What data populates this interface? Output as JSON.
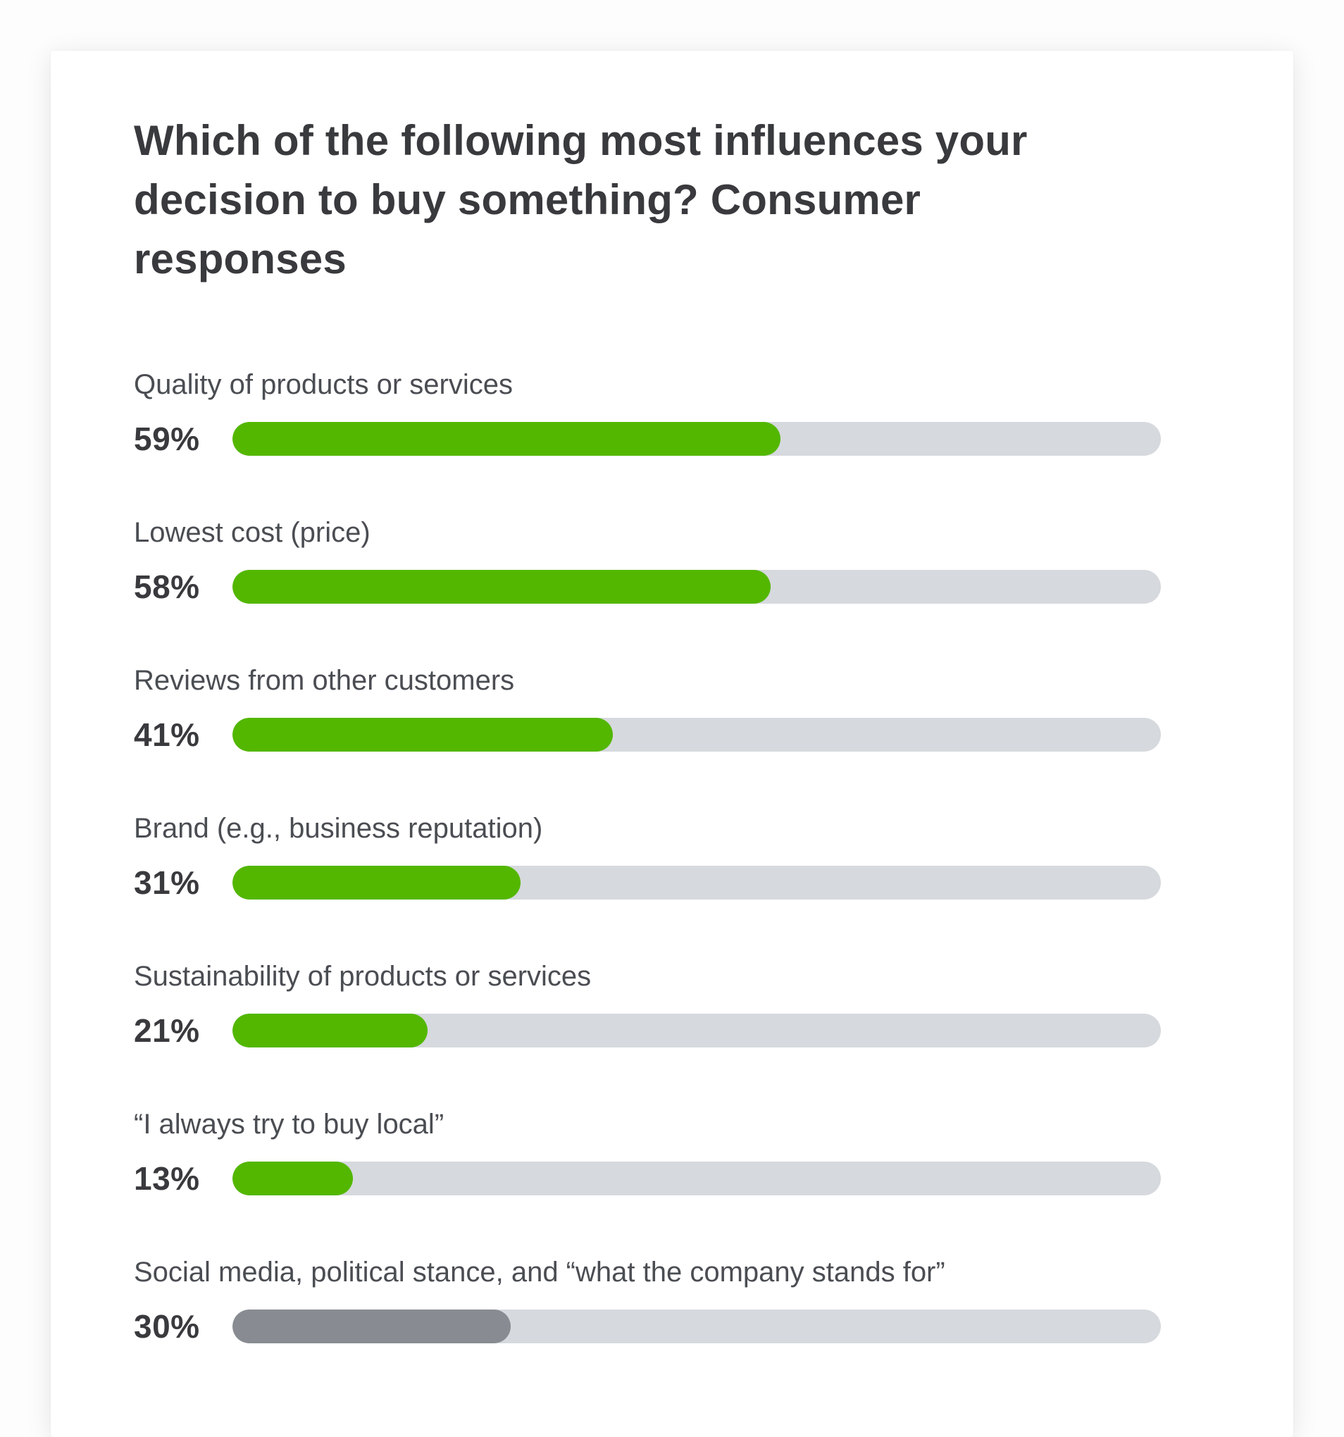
{
  "chart_data": {
    "type": "bar",
    "orientation": "horizontal",
    "title": "Which of the following most influences your decision to buy something? Consumer responses",
    "categories": [
      "Quality of products or services",
      "Lowest cost (price)",
      "Reviews from other customers",
      "Brand (e.g., business reputation)",
      "Sustainability of products or services",
      "“I always try to buy local”",
      "Social media, political stance, and “what the company stands for”"
    ],
    "values": [
      59,
      58,
      41,
      31,
      21,
      13,
      30
    ],
    "value_labels": [
      "59%",
      "58%",
      "41%",
      "31%",
      "21%",
      "13%",
      "30%"
    ],
    "bar_colors": [
      "#53b700",
      "#53b700",
      "#53b700",
      "#53b700",
      "#53b700",
      "#53b700",
      "#888c92"
    ],
    "xlim": [
      0,
      100
    ],
    "grid": false,
    "legend": false,
    "track_color": "#d6d9dd",
    "accent_green": "#53b700",
    "neutral_gray_fill": "#888c92",
    "title_color": "#393a3d",
    "label_color": "#4a4d52",
    "value_color": "#393a3d"
  }
}
